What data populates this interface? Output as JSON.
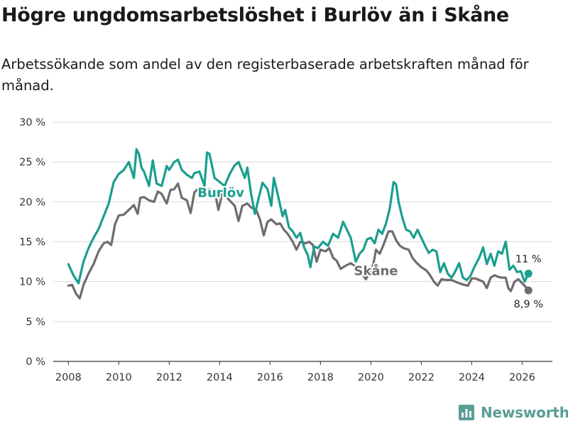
{
  "title": "Högre ungdomsarbetslöshet i Burlöv än i Skåne",
  "subtitle": "Arbetssökande som andel av den registerbaserade arbetskraften månad för månad.",
  "logo": {
    "text": "Newsworthy",
    "icon": "bar-chart-logo-icon"
  },
  "chart_data": {
    "type": "line",
    "title": "Högre ungdomsarbetslöshet i Burlöv än i Skåne",
    "subtitle": "Arbetssökande som andel av den registerbaserade arbetskraften månad för månad.",
    "xlabel": "",
    "ylabel": "",
    "xlim": [
      2007.4,
      2027.2
    ],
    "ylim": [
      0,
      30
    ],
    "grid": "horizontal",
    "legend": "direct labels",
    "x_ticks": [
      2008,
      2010,
      2012,
      2014,
      2016,
      2018,
      2020,
      2022,
      2024,
      2026
    ],
    "x_tick_labels": [
      "2008",
      "2010",
      "2012",
      "2014",
      "2016",
      "2018",
      "2020",
      "2022",
      "2024",
      "2026"
    ],
    "y_ticks": [
      0,
      5,
      10,
      15,
      20,
      25,
      30
    ],
    "y_tick_labels": [
      "0 %",
      "5 %",
      "10 %",
      "15 %",
      "20 %",
      "25 %",
      "30 %"
    ],
    "series": [
      {
        "name": "Burlöv",
        "color": "#1a9e8f",
        "end_label": "11 %",
        "points": [
          [
            2008.0,
            12.2
          ],
          [
            2008.2,
            10.8
          ],
          [
            2008.4,
            9.8
          ],
          [
            2008.6,
            12.5
          ],
          [
            2008.8,
            14.2
          ],
          [
            2009.0,
            15.5
          ],
          [
            2009.2,
            16.6
          ],
          [
            2009.4,
            18.2
          ],
          [
            2009.6,
            19.8
          ],
          [
            2009.8,
            22.5
          ],
          [
            2010.0,
            23.5
          ],
          [
            2010.2,
            24.0
          ],
          [
            2010.4,
            25.0
          ],
          [
            2010.6,
            23.0
          ],
          [
            2010.7,
            26.6
          ],
          [
            2010.8,
            26.0
          ],
          [
            2010.9,
            24.3
          ],
          [
            2011.0,
            23.8
          ],
          [
            2011.2,
            22.0
          ],
          [
            2011.35,
            25.2
          ],
          [
            2011.5,
            22.3
          ],
          [
            2011.7,
            22.0
          ],
          [
            2011.9,
            24.5
          ],
          [
            2012.0,
            24.0
          ],
          [
            2012.2,
            25.0
          ],
          [
            2012.35,
            25.3
          ],
          [
            2012.5,
            24.0
          ],
          [
            2012.7,
            23.4
          ],
          [
            2012.9,
            23.0
          ],
          [
            2013.0,
            23.6
          ],
          [
            2013.2,
            23.8
          ],
          [
            2013.4,
            22.0
          ],
          [
            2013.5,
            26.2
          ],
          [
            2013.6,
            26.0
          ],
          [
            2013.8,
            23.0
          ],
          [
            2014.0,
            22.5
          ],
          [
            2014.2,
            22.0
          ],
          [
            2014.4,
            23.5
          ],
          [
            2014.6,
            24.6
          ],
          [
            2014.75,
            25.0
          ],
          [
            2015.0,
            23.0
          ],
          [
            2015.1,
            24.3
          ],
          [
            2015.25,
            21.0
          ],
          [
            2015.4,
            18.5
          ],
          [
            2015.55,
            20.5
          ],
          [
            2015.7,
            22.4
          ],
          [
            2015.9,
            21.6
          ],
          [
            2016.05,
            19.5
          ],
          [
            2016.15,
            23.0
          ],
          [
            2016.3,
            21.0
          ],
          [
            2016.5,
            18.2
          ],
          [
            2016.6,
            19.0
          ],
          [
            2016.75,
            16.8
          ],
          [
            2016.9,
            16.3
          ],
          [
            2017.05,
            15.5
          ],
          [
            2017.2,
            16.1
          ],
          [
            2017.35,
            14.3
          ],
          [
            2017.5,
            13.3
          ],
          [
            2017.6,
            11.8
          ],
          [
            2017.75,
            14.4
          ],
          [
            2017.9,
            14.2
          ],
          [
            2018.1,
            15.0
          ],
          [
            2018.3,
            14.5
          ],
          [
            2018.5,
            16.0
          ],
          [
            2018.7,
            15.5
          ],
          [
            2018.9,
            17.5
          ],
          [
            2019.05,
            16.5
          ],
          [
            2019.2,
            15.5
          ],
          [
            2019.4,
            12.5
          ],
          [
            2019.55,
            13.5
          ],
          [
            2019.7,
            14.0
          ],
          [
            2019.85,
            15.3
          ],
          [
            2020.0,
            15.5
          ],
          [
            2020.15,
            14.8
          ],
          [
            2020.3,
            16.5
          ],
          [
            2020.45,
            16.0
          ],
          [
            2020.6,
            17.3
          ],
          [
            2020.75,
            19.2
          ],
          [
            2020.9,
            22.5
          ],
          [
            2021.0,
            22.2
          ],
          [
            2021.1,
            20.0
          ],
          [
            2021.25,
            18.0
          ],
          [
            2021.4,
            16.5
          ],
          [
            2021.55,
            16.3
          ],
          [
            2021.7,
            15.5
          ],
          [
            2021.85,
            16.5
          ],
          [
            2022.0,
            15.5
          ],
          [
            2022.15,
            14.5
          ],
          [
            2022.3,
            13.6
          ],
          [
            2022.45,
            14.0
          ],
          [
            2022.6,
            13.8
          ],
          [
            2022.75,
            11.2
          ],
          [
            2022.9,
            12.3
          ],
          [
            2023.05,
            11.0
          ],
          [
            2023.2,
            10.5
          ],
          [
            2023.35,
            11.3
          ],
          [
            2023.5,
            12.3
          ],
          [
            2023.65,
            10.5
          ],
          [
            2023.8,
            10.2
          ],
          [
            2023.95,
            10.7
          ],
          [
            2024.1,
            11.8
          ],
          [
            2024.3,
            13.0
          ],
          [
            2024.45,
            14.3
          ],
          [
            2024.6,
            12.2
          ],
          [
            2024.75,
            13.5
          ],
          [
            2024.9,
            12.0
          ],
          [
            2025.05,
            13.8
          ],
          [
            2025.2,
            13.5
          ],
          [
            2025.35,
            15.0
          ],
          [
            2025.5,
            11.5
          ],
          [
            2025.65,
            12.0
          ],
          [
            2025.8,
            11.2
          ],
          [
            2025.95,
            11.3
          ],
          [
            2026.1,
            10.0
          ],
          [
            2026.25,
            11.0
          ]
        ]
      },
      {
        "name": "Skåne",
        "color": "#6f6c70",
        "end_label": "8,9 %",
        "points": [
          [
            2008.0,
            9.5
          ],
          [
            2008.15,
            9.6
          ],
          [
            2008.3,
            8.5
          ],
          [
            2008.45,
            7.9
          ],
          [
            2008.6,
            9.6
          ],
          [
            2008.8,
            11.0
          ],
          [
            2009.0,
            12.2
          ],
          [
            2009.2,
            13.8
          ],
          [
            2009.4,
            14.8
          ],
          [
            2009.55,
            15.0
          ],
          [
            2009.7,
            14.6
          ],
          [
            2009.85,
            17.2
          ],
          [
            2010.0,
            18.3
          ],
          [
            2010.2,
            18.4
          ],
          [
            2010.4,
            19.0
          ],
          [
            2010.6,
            19.6
          ],
          [
            2010.75,
            18.5
          ],
          [
            2010.85,
            20.5
          ],
          [
            2011.0,
            20.6
          ],
          [
            2011.2,
            20.2
          ],
          [
            2011.4,
            20.0
          ],
          [
            2011.55,
            21.3
          ],
          [
            2011.7,
            21.0
          ],
          [
            2011.9,
            19.8
          ],
          [
            2012.05,
            21.5
          ],
          [
            2012.2,
            21.6
          ],
          [
            2012.35,
            22.3
          ],
          [
            2012.5,
            20.5
          ],
          [
            2012.7,
            20.2
          ],
          [
            2012.85,
            18.6
          ],
          [
            2013.0,
            21.2
          ],
          [
            2013.2,
            21.8
          ],
          [
            2013.4,
            21.5
          ],
          [
            2013.6,
            21.6
          ],
          [
            2013.8,
            21.4
          ],
          [
            2013.95,
            19.0
          ],
          [
            2014.1,
            21.0
          ],
          [
            2014.3,
            20.5
          ],
          [
            2014.45,
            20.0
          ],
          [
            2014.6,
            19.5
          ],
          [
            2014.75,
            17.6
          ],
          [
            2014.9,
            19.5
          ],
          [
            2015.1,
            19.8
          ],
          [
            2015.25,
            19.3
          ],
          [
            2015.45,
            19.0
          ],
          [
            2015.6,
            17.8
          ],
          [
            2015.75,
            15.8
          ],
          [
            2015.9,
            17.5
          ],
          [
            2016.05,
            17.8
          ],
          [
            2016.25,
            17.2
          ],
          [
            2016.4,
            17.3
          ],
          [
            2016.55,
            16.5
          ],
          [
            2016.7,
            16.0
          ],
          [
            2016.9,
            15.0
          ],
          [
            2017.05,
            14.0
          ],
          [
            2017.2,
            15.0
          ],
          [
            2017.4,
            14.8
          ],
          [
            2017.55,
            15.0
          ],
          [
            2017.7,
            14.6
          ],
          [
            2017.85,
            12.5
          ],
          [
            2018.0,
            14.0
          ],
          [
            2018.2,
            13.8
          ],
          [
            2018.35,
            14.2
          ],
          [
            2018.5,
            13.0
          ],
          [
            2018.65,
            12.6
          ],
          [
            2018.8,
            11.6
          ],
          [
            2019.0,
            12.0
          ],
          [
            2019.2,
            12.3
          ],
          [
            2019.35,
            12.0
          ],
          [
            2019.5,
            11.5
          ],
          [
            2019.65,
            11.0
          ],
          [
            2019.8,
            10.3
          ],
          [
            2019.95,
            11.2
          ],
          [
            2020.1,
            12.2
          ],
          [
            2020.2,
            14.0
          ],
          [
            2020.35,
            13.5
          ],
          [
            2020.5,
            14.6
          ],
          [
            2020.7,
            16.3
          ],
          [
            2020.85,
            16.3
          ],
          [
            2021.0,
            15.2
          ],
          [
            2021.15,
            14.5
          ],
          [
            2021.3,
            14.2
          ],
          [
            2021.5,
            14.0
          ],
          [
            2021.65,
            13.0
          ],
          [
            2021.8,
            12.4
          ],
          [
            2022.0,
            11.8
          ],
          [
            2022.2,
            11.4
          ],
          [
            2022.35,
            10.8
          ],
          [
            2022.5,
            10.0
          ],
          [
            2022.65,
            9.5
          ],
          [
            2022.8,
            10.3
          ],
          [
            2023.0,
            10.2
          ],
          [
            2023.2,
            10.2
          ],
          [
            2023.35,
            10.0
          ],
          [
            2023.5,
            9.8
          ],
          [
            2023.7,
            9.6
          ],
          [
            2023.85,
            9.5
          ],
          [
            2024.0,
            10.4
          ],
          [
            2024.15,
            10.4
          ],
          [
            2024.3,
            10.2
          ],
          [
            2024.45,
            10.0
          ],
          [
            2024.6,
            9.2
          ],
          [
            2024.75,
            10.5
          ],
          [
            2024.9,
            10.8
          ],
          [
            2025.05,
            10.6
          ],
          [
            2025.2,
            10.5
          ],
          [
            2025.35,
            10.5
          ],
          [
            2025.45,
            9.2
          ],
          [
            2025.55,
            8.8
          ],
          [
            2025.7,
            10.0
          ],
          [
            2025.85,
            10.3
          ],
          [
            2026.0,
            9.8
          ],
          [
            2026.15,
            9.3
          ],
          [
            2026.25,
            8.9
          ]
        ]
      }
    ]
  }
}
